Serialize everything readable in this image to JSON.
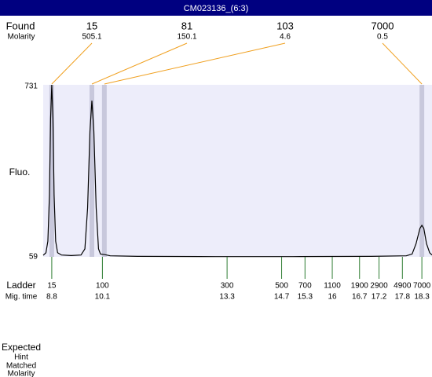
{
  "chart_data": {
    "type": "line",
    "title": "CM023136_(6:3)",
    "y_label": "Fluo.",
    "ylim": [
      59,
      731
    ],
    "yticks": [
      731,
      59
    ],
    "xlim": [
      8.58,
      18.56
    ],
    "color": "#000000",
    "x": [
      8.58,
      8.65,
      8.7,
      8.74,
      8.77,
      8.8,
      8.83,
      8.86,
      8.9,
      8.95,
      9.05,
      9.3,
      9.55,
      9.65,
      9.72,
      9.78,
      9.83,
      9.88,
      9.94,
      10.0,
      10.05,
      10.15,
      10.3,
      11.0,
      13.0,
      15.0,
      17.0,
      17.9,
      18.05,
      18.15,
      18.25,
      18.3,
      18.35,
      18.42,
      18.5,
      18.56
    ],
    "values": [
      65,
      75,
      120,
      300,
      600,
      731,
      600,
      300,
      120,
      75,
      66,
      64,
      66,
      90,
      250,
      550,
      669,
      550,
      250,
      90,
      70,
      68,
      63,
      61,
      60,
      60,
      61,
      63,
      70,
      110,
      170,
      182,
      170,
      110,
      75,
      66
    ],
    "found": {
      "label": "Found",
      "sublabel": "Molarity",
      "sizes": [
        15,
        81,
        103,
        7000
      ],
      "molarities": [
        505.1,
        150.1,
        4.6,
        0.5
      ],
      "times": [
        8.8,
        9.83,
        10.15,
        18.3
      ]
    },
    "ladder": {
      "label": "Ladder",
      "sublabel": "Mig. time",
      "sizes": [
        15,
        100,
        300,
        500,
        700,
        1100,
        1900,
        2900,
        4900,
        7000
      ],
      "times": [
        8.8,
        10.1,
        13.3,
        14.7,
        15.3,
        16,
        16.7,
        17.2,
        17.8,
        18.3
      ]
    },
    "footer": [
      "Expected",
      "Hint",
      "Matched",
      "Molarity"
    ]
  }
}
